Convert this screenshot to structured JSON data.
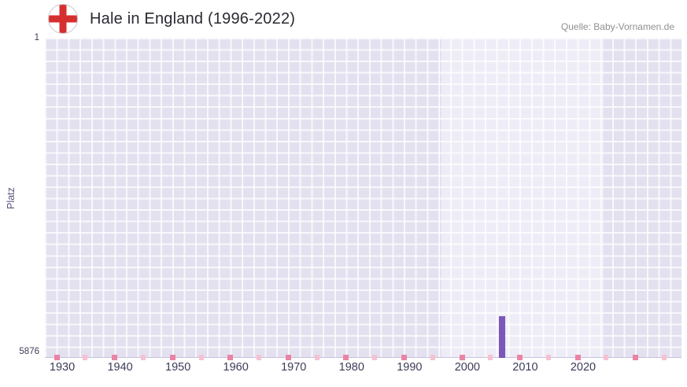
{
  "header": {
    "title": "Hale in England (1996-2022)",
    "source": "Quelle: Baby-Vornamen.de"
  },
  "chart_data": {
    "type": "bar",
    "title": "Hale in England (1996-2022)",
    "source": "Quelle: Baby-Vornamen.de",
    "xlabel": "",
    "ylabel": "Platz",
    "x_ticks": [
      1930,
      1940,
      1950,
      1960,
      1970,
      1980,
      1990,
      2000,
      2010,
      2020
    ],
    "y_ticks": [
      "1",
      "5876"
    ],
    "xlim": [
      1927,
      2037
    ],
    "ylim": [
      1,
      5876
    ],
    "y_axis_inverted": true,
    "grid": true,
    "legend": "none",
    "data_period": {
      "start": 1996,
      "end": 2022
    },
    "highlight_band": [
      1995.5,
      2023.5
    ],
    "bar_width_years": 1.2,
    "series": [
      {
        "name": "Hale",
        "points": [
          {
            "year": 2006,
            "rank": 5110
          }
        ]
      }
    ],
    "axis_marks": {
      "major_years": [
        1929,
        1939,
        1949,
        1959,
        1969,
        1979,
        1989,
        1999,
        2009,
        2019,
        2029
      ],
      "minor_years": [
        1934,
        1944,
        1954,
        1964,
        1974,
        1984,
        1994,
        2004,
        2014,
        2024,
        2034
      ]
    },
    "colors": {
      "bar": "#7a57b8",
      "plot_background": "#e3e1ef",
      "band_background": "#eeedf7",
      "grid_line": "#ffffff",
      "mark_major": "#ea84a4",
      "mark_minor": "#f5c2d2",
      "axis_text": "#3e3b58",
      "flag_red": "#d62f2f"
    }
  }
}
